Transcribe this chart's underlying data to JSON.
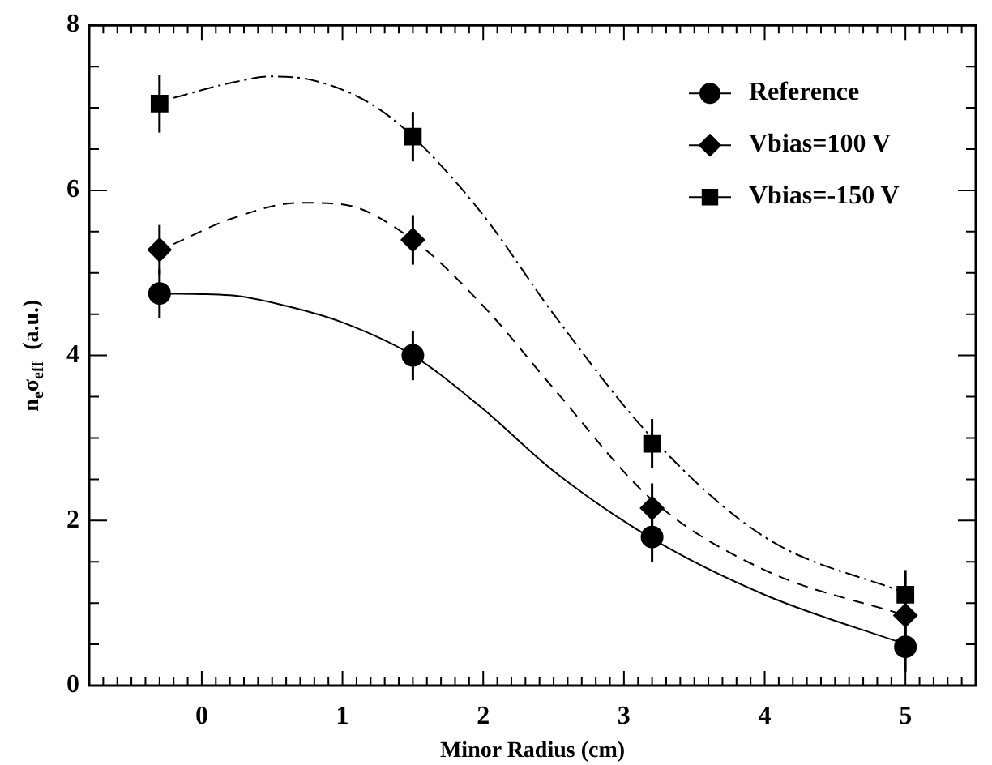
{
  "chart_data": {
    "type": "scatter",
    "xlabel": "Minor Radius (cm)",
    "ylabel": "n$_{e}$σ$_{eff}$  (a.u.)",
    "xlim": [
      -0.8,
      5.5
    ],
    "xticks": [
      {
        "value": -0.8,
        "label": null
      },
      {
        "value": -0.7,
        "label": null
      },
      {
        "value": -0.6,
        "label": null
      },
      {
        "value": -0.5,
        "label": null
      },
      {
        "value": -0.4,
        "label": null
      },
      {
        "value": -0.3,
        "label": null
      },
      {
        "value": -0.2,
        "label": null
      },
      {
        "value": -0.1,
        "label": null
      },
      0,
      {
        "value": 0.1,
        "label": null
      },
      {
        "value": 0.2,
        "label": null
      },
      {
        "value": 0.3,
        "label": null
      },
      {
        "value": 0.4,
        "label": null
      },
      {
        "value": 0.5,
        "label": null
      },
      {
        "value": 0.6,
        "label": null
      },
      {
        "value": 0.7,
        "label": null
      },
      {
        "value": 0.8,
        "label": null
      },
      {
        "value": 0.9,
        "label": null
      },
      1,
      {
        "value": 1.1,
        "label": null
      },
      {
        "value": 1.2,
        "label": null
      },
      {
        "value": 1.3,
        "label": null
      },
      {
        "value": 1.4,
        "label": null
      },
      {
        "value": 1.5,
        "label": null
      },
      {
        "value": 1.6,
        "label": null
      },
      {
        "value": 1.7,
        "label": null
      },
      {
        "value": 1.8,
        "label": null
      },
      {
        "value": 1.9,
        "label": null
      },
      2,
      {
        "value": 2.1,
        "label": null
      },
      {
        "value": 2.2,
        "label": null
      },
      {
        "value": 2.3,
        "label": null
      },
      {
        "value": 2.4,
        "label": null
      },
      {
        "value": 2.5,
        "label": null
      },
      {
        "value": 2.6,
        "label": null
      },
      {
        "value": 2.7,
        "label": null
      },
      {
        "value": 2.8,
        "label": null
      },
      {
        "value": 2.9,
        "label": null
      },
      3,
      {
        "value": 3.1,
        "label": null
      },
      {
        "value": 3.2,
        "label": null
      },
      {
        "value": 3.3,
        "label": null
      },
      {
        "value": 3.4,
        "label": null
      },
      {
        "value": 3.5,
        "label": null
      },
      {
        "value": 3.6,
        "label": null
      },
      {
        "value": 3.7,
        "label": null
      },
      {
        "value": 3.8,
        "label": null
      },
      {
        "value": 3.9,
        "label": null
      },
      4,
      {
        "value": 4.1,
        "label": null
      },
      {
        "value": 4.2,
        "label": null
      },
      {
        "value": 4.3,
        "label": null
      },
      {
        "value": 4.4,
        "label": null
      },
      {
        "value": 4.5,
        "label": null
      },
      {
        "value": 4.6,
        "label": null
      },
      {
        "value": 4.7,
        "label": null
      },
      {
        "value": 4.8,
        "label": null
      },
      {
        "value": 4.9,
        "label": null
      },
      5,
      {
        "value": 5.1,
        "label": null
      },
      {
        "value": 5.2,
        "label": null
      },
      {
        "value": 5.3,
        "label": null
      },
      {
        "value": 5.4,
        "label": null
      },
      {
        "value": 5.5,
        "label": null
      }
    ],
    "ylim": [
      0,
      8
    ],
    "yticks": [
      0,
      {
        "value": 0.5,
        "label": null
      },
      {
        "value": 1,
        "label": null
      },
      {
        "value": 1.5,
        "label": null
      },
      2,
      {
        "value": 2.5,
        "label": null
      },
      {
        "value": 3,
        "label": null
      },
      {
        "value": 3.5,
        "label": null
      },
      4,
      {
        "value": 4.5,
        "label": null
      },
      {
        "value": 5,
        "label": null
      },
      {
        "value": 5.5,
        "label": null
      },
      6,
      {
        "value": 6.5,
        "label": null
      },
      {
        "value": 7,
        "label": null
      },
      {
        "value": 7.5,
        "label": null
      },
      8
    ],
    "legend": "top right",
    "series": [
      {
        "name": "Reference",
        "marker": "circle",
        "color": "#000000",
        "x": [
          -0.3,
          1.5,
          3.2,
          5.0
        ],
        "values": [
          4.75,
          4.0,
          1.8,
          0.47
        ],
        "errors": [
          0.3,
          0.3,
          0.3,
          0.3
        ]
      },
      {
        "name": "Vbias=100 V",
        "marker": "diamond",
        "color": "#000000",
        "x": [
          -0.3,
          1.5,
          3.2,
          5.0
        ],
        "values": [
          5.28,
          5.4,
          2.15,
          0.85
        ],
        "errors": [
          0.3,
          0.3,
          0.3,
          0.3
        ]
      },
      {
        "name": "Vbias=-150 V",
        "marker": "square",
        "color": "#000000",
        "x": [
          -0.3,
          1.5,
          3.2,
          5.0
        ],
        "values": [
          7.05,
          6.65,
          2.93,
          1.1
        ],
        "errors": [
          0.35,
          0.3,
          0.3,
          0.3
        ]
      },
      {
        "type": "line",
        "line_style": "solid",
        "color": "#000000",
        "x": [
          -0.3,
          0.2,
          0.6,
          1.0,
          1.5,
          2.0,
          2.5,
          3.2,
          4.0,
          5.0
        ],
        "values": [
          4.75,
          4.73,
          4.6,
          4.4,
          4.0,
          3.35,
          2.6,
          1.78,
          1.1,
          0.5
        ]
      },
      {
        "type": "line",
        "line_style": "dashed",
        "color": "#000000",
        "x": [
          -0.2,
          0.2,
          0.7,
          1.0,
          1.5,
          2.0,
          2.5,
          3.2,
          4.0,
          5.0
        ],
        "values": [
          5.35,
          5.65,
          5.85,
          5.83,
          5.4,
          4.6,
          3.6,
          2.25,
          1.4,
          0.85
        ]
      },
      {
        "type": "line",
        "line_style": "dashdot",
        "color": "#000000",
        "x": [
          -0.2,
          0.2,
          0.5,
          0.8,
          1.2,
          1.5,
          2.0,
          2.5,
          3.2,
          4.0,
          5.0
        ],
        "values": [
          7.12,
          7.3,
          7.38,
          7.33,
          7.05,
          6.65,
          5.7,
          4.5,
          3.0,
          1.8,
          1.12
        ]
      }
    ]
  }
}
